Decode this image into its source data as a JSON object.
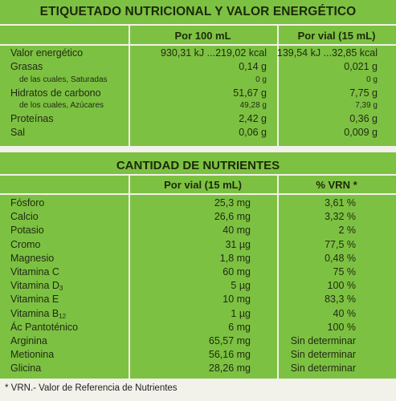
{
  "table1": {
    "title": "ETIQUETADO NUTRICIONAL Y VALOR ENERGÉTICO",
    "col1": "Por 100 mL",
    "col2": "Por vial (15 mL)",
    "rows": [
      {
        "label": "Valor energético",
        "v1": "930,31 kJ ...219,02 kcal",
        "v2": "139,54 kJ ...32,85 kcal",
        "sub": false
      },
      {
        "label": "Grasas",
        "v1": "0,14 g",
        "v2": "0,021 g",
        "sub": false
      },
      {
        "label": "de las cuales, Saturadas",
        "v1": "0 g",
        "v2": "0 g",
        "sub": true
      },
      {
        "label": "Hidratos de carbono",
        "v1": "51,67 g",
        "v2": "7,75 g",
        "sub": false
      },
      {
        "label": "de los cuales, Azúcares",
        "v1": "49,28 g",
        "v2": "7,39 g",
        "sub": true
      },
      {
        "label": "Proteínas",
        "v1": "2,42 g",
        "v2": "0,36 g",
        "sub": false
      },
      {
        "label": "Sal",
        "v1": "0,06 g",
        "v2": "0,009 g",
        "sub": false
      }
    ]
  },
  "table2": {
    "title": "CANTIDAD DE NUTRIENTES",
    "col1": "Por vial (15 mL)",
    "col2": "% VRN *",
    "rows": [
      {
        "label": "Fósforo",
        "sub": "",
        "v1": "25,3 mg",
        "v2": "3,61 %"
      },
      {
        "label": "Calcio",
        "sub": "",
        "v1": "26,6 mg",
        "v2": "3,32 %"
      },
      {
        "label": "Potasio",
        "sub": "",
        "v1": "40 mg",
        "v2": "2 %"
      },
      {
        "label": "Cromo",
        "sub": "",
        "v1": "31 µg",
        "v2": "77,5 %"
      },
      {
        "label": "Magnesio",
        "sub": "",
        "v1": "1,8 mg",
        "v2": "0,48 %"
      },
      {
        "label": "Vitamina C",
        "sub": "",
        "v1": "60 mg",
        "v2": "75 %"
      },
      {
        "label": "Vitamina D",
        "sub": "3",
        "v1": "5 µg",
        "v2": "100 %"
      },
      {
        "label": "Vitamina E",
        "sub": "",
        "v1": "10 mg",
        "v2": "83,3 %"
      },
      {
        "label": "Vitamina B",
        "sub": "12",
        "v1": "1 µg",
        "v2": "40 %"
      },
      {
        "label": "Ác Pantoténico",
        "sub": "",
        "v1": "6 mg",
        "v2": "100 %"
      },
      {
        "label": "Arginina",
        "sub": "",
        "v1": "65,57 mg",
        "v2": "Sin determinar"
      },
      {
        "label": "Metionina",
        "sub": "",
        "v1": "56,16 mg",
        "v2": "Sin determinar"
      },
      {
        "label": "Glicina",
        "sub": "",
        "v1": "28,26 mg",
        "v2": "Sin determinar"
      }
    ]
  },
  "footnote": "* VRN.- Valor de Referencia de Nutrientes",
  "colors": {
    "panel": "#7dc142",
    "background": "#f2f1ea",
    "text": "#1f2a12"
  }
}
